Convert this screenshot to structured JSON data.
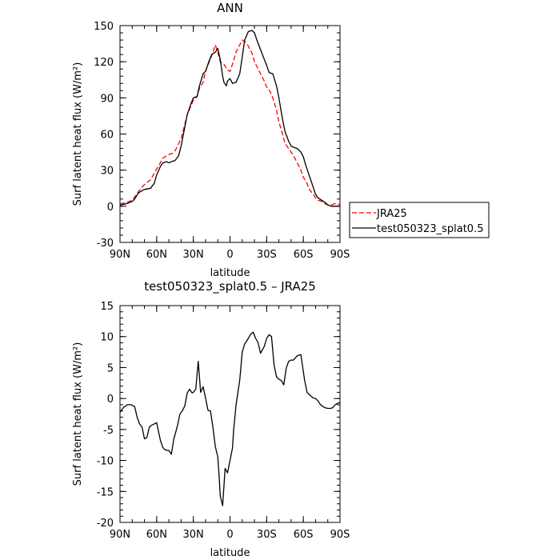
{
  "chart_data": [
    {
      "type": "line",
      "title": "ANN",
      "xlabel": "latitude",
      "ylabel": "Surf latent heat flux (W/m²)",
      "ylim": [
        -30,
        150
      ],
      "yticks": [
        -30,
        0,
        30,
        60,
        90,
        120,
        150
      ],
      "xlim": [
        -90,
        90
      ],
      "xticks": [
        -90,
        -60,
        -30,
        0,
        30,
        60,
        90
      ],
      "xtick_labels": [
        "90N",
        "60N",
        "30N",
        "0",
        "30S",
        "60S",
        "90S"
      ],
      "legend": {
        "placement": "right",
        "entries": [
          "JRA25",
          "test050323_splat0.5"
        ]
      },
      "series": [
        {
          "name": "JRA25",
          "color": "#ff0000",
          "style": "dashed",
          "x": [
            -90,
            -85,
            -80,
            -75,
            -72,
            -70,
            -65,
            -60,
            -57,
            -55,
            -50,
            -47,
            -45,
            -40,
            -35,
            -30,
            -27,
            -25,
            -22,
            -20,
            -15,
            -12,
            -10,
            -8,
            -5,
            -2,
            0,
            2,
            5,
            8,
            10,
            13,
            15,
            18,
            20,
            23,
            25,
            28,
            30,
            33,
            35,
            38,
            40,
            43,
            45,
            48,
            50,
            53,
            55,
            58,
            60,
            63,
            65,
            68,
            70,
            72,
            75,
            78,
            80,
            83,
            85,
            88,
            90
          ],
          "values": [
            2,
            3,
            5,
            12,
            16,
            18,
            22,
            31,
            36,
            40,
            43,
            44,
            46,
            56,
            76,
            88,
            91,
            98,
            103,
            112,
            125,
            134,
            128,
            120,
            118,
            113,
            112,
            118,
            128,
            134,
            138,
            136,
            133,
            127,
            120,
            114,
            110,
            104,
            99,
            95,
            90,
            80,
            70,
            60,
            52,
            48,
            45,
            40,
            36,
            30,
            24,
            19,
            14,
            10,
            7,
            5,
            4,
            2,
            1,
            1,
            2,
            2,
            1
          ]
        },
        {
          "name": "test050323_splat0.5",
          "color": "#000000",
          "style": "solid",
          "x": [
            -90,
            -85,
            -80,
            -78,
            -75,
            -72,
            -70,
            -65,
            -62,
            -60,
            -57,
            -55,
            -52,
            -50,
            -48,
            -45,
            -42,
            -40,
            -35,
            -32,
            -30,
            -27,
            -25,
            -22,
            -20,
            -17,
            -15,
            -12,
            -10,
            -8,
            -6,
            -5,
            -3,
            -2,
            0,
            2,
            5,
            8,
            10,
            12,
            15,
            18,
            20,
            22,
            25,
            28,
            30,
            32,
            35,
            38,
            40,
            43,
            45,
            48,
            50,
            52,
            55,
            58,
            60,
            62,
            65,
            68,
            70,
            72,
            75,
            78,
            80,
            83,
            85,
            88,
            90
          ],
          "values": [
            1,
            2,
            4,
            6,
            11,
            13,
            14,
            15,
            19,
            26,
            33,
            36,
            37,
            36,
            37,
            38,
            42,
            50,
            76,
            85,
            90,
            91,
            100,
            110,
            112,
            121,
            126,
            128,
            131,
            122,
            108,
            103,
            100,
            104,
            106,
            102,
            103,
            110,
            124,
            138,
            145,
            146,
            144,
            138,
            130,
            122,
            117,
            111,
            110,
            100,
            90,
            72,
            62,
            54,
            50,
            49,
            48,
            45,
            41,
            34,
            25,
            16,
            10,
            7,
            5,
            3,
            1,
            0,
            0,
            0,
            0
          ]
        }
      ]
    },
    {
      "type": "line",
      "title": "test050323_splat0.5 – JRA25",
      "xlabel": "latitude",
      "ylabel": "Surf latent heat flux (W/m²)",
      "ylim": [
        -20,
        15
      ],
      "yticks": [
        -20,
        -15,
        -10,
        -5,
        0,
        5,
        10,
        15
      ],
      "xlim": [
        -90,
        90
      ],
      "xticks": [
        -90,
        -60,
        -30,
        0,
        30,
        60,
        90
      ],
      "xtick_labels": [
        "90N",
        "60N",
        "30N",
        "0",
        "30S",
        "60S",
        "90S"
      ],
      "series": [
        {
          "color": "#000000",
          "style": "solid",
          "x": [
            -90,
            -87,
            -84,
            -81,
            -78,
            -76,
            -74,
            -72,
            -70,
            -68,
            -66,
            -64,
            -62,
            -60,
            -57,
            -55,
            -53,
            -50,
            -48,
            -46,
            -43,
            -41,
            -39,
            -37,
            -35,
            -33,
            -31,
            -30,
            -28,
            -26,
            -24,
            -22,
            -20,
            -18,
            -16,
            -14,
            -12,
            -10,
            -9,
            -8,
            -6,
            -4,
            -2,
            0,
            2,
            3,
            5,
            8,
            10,
            12,
            14,
            17,
            19,
            21,
            23,
            25,
            28,
            30,
            32,
            34,
            36,
            38,
            40,
            42,
            44,
            46,
            48,
            50,
            52,
            55,
            58,
            61,
            63,
            65,
            68,
            70,
            72,
            74,
            76,
            78,
            80,
            82,
            84,
            86,
            88,
            90
          ],
          "values": [
            -2.2,
            -1.4,
            -1.0,
            -1.0,
            -1.3,
            -3.0,
            -4.1,
            -4.6,
            -6.5,
            -6.3,
            -4.6,
            -4.3,
            -4.1,
            -3.9,
            -6.7,
            -7.9,
            -8.3,
            -8.4,
            -9.0,
            -6.6,
            -4.4,
            -2.5,
            -2.0,
            -1.2,
            0.9,
            1.5,
            0.9,
            1.0,
            1.5,
            6.0,
            1.0,
            1.9,
            0.1,
            -1.9,
            -2.0,
            -4.6,
            -7.8,
            -9.4,
            -12.3,
            -15.7,
            -17.3,
            -11.3,
            -12.0,
            -10.0,
            -8.0,
            -5.0,
            -1.0,
            3.0,
            7.5,
            8.8,
            9.4,
            10.4,
            10.7,
            9.7,
            9.0,
            7.3,
            8.4,
            9.7,
            10.3,
            10.0,
            5.5,
            3.5,
            3.1,
            2.9,
            2.2,
            4.9,
            6.0,
            6.2,
            6.2,
            6.9,
            7.1,
            3.0,
            1.0,
            0.6,
            0.1,
            0.0,
            -0.4,
            -1.0,
            -1.3,
            -1.5,
            -1.6,
            -1.6,
            -1.5,
            -1.0,
            -0.8,
            -0.6
          ]
        }
      ]
    }
  ]
}
